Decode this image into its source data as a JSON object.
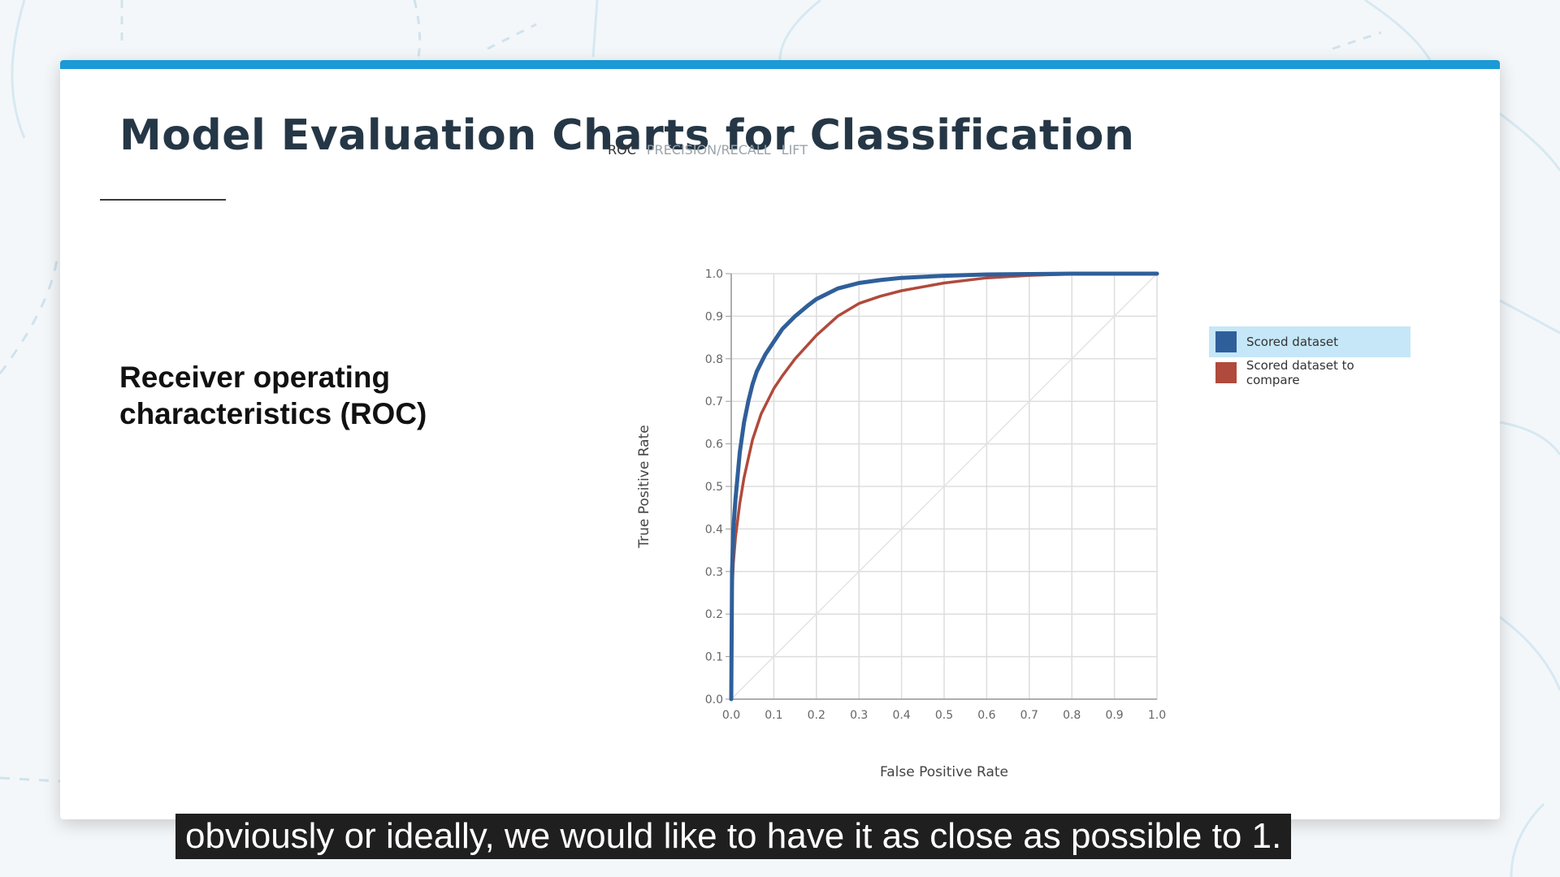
{
  "slide": {
    "title": "Model Evaluation Charts for Classification",
    "subtitle": "Receiver operating characteristics (ROC)"
  },
  "chart_tabs": [
    {
      "label": "ROC",
      "active": true
    },
    {
      "label": "PRECISION/RECALL",
      "active": false
    },
    {
      "label": "LIFT",
      "active": false
    }
  ],
  "chart_data": {
    "type": "line",
    "xlabel": "False Positive Rate",
    "ylabel": "True Positive Rate",
    "xlim": [
      0,
      1
    ],
    "ylim": [
      0,
      1
    ],
    "x_ticks": [
      "0.0",
      "0.1",
      "0.2",
      "0.3",
      "0.4",
      "0.5",
      "0.6",
      "0.7",
      "0.8",
      "0.9",
      "1.0"
    ],
    "y_ticks": [
      "0.0",
      "0.1",
      "0.2",
      "0.3",
      "0.4",
      "0.5",
      "0.6",
      "0.7",
      "0.8",
      "0.9",
      "1.0"
    ],
    "grid": true,
    "legend_position": "right",
    "diagonal_reference": true,
    "series": [
      {
        "name": "Scored dataset",
        "color": "#2f5f9a",
        "x": [
          0,
          0.002,
          0.005,
          0.01,
          0.02,
          0.03,
          0.04,
          0.05,
          0.06,
          0.08,
          0.1,
          0.12,
          0.15,
          0.18,
          0.2,
          0.25,
          0.3,
          0.35,
          0.4,
          0.5,
          0.6,
          0.7,
          0.8,
          0.9,
          1.0
        ],
        "y": [
          0,
          0.3,
          0.4,
          0.47,
          0.58,
          0.65,
          0.7,
          0.74,
          0.77,
          0.81,
          0.84,
          0.87,
          0.9,
          0.925,
          0.94,
          0.965,
          0.978,
          0.985,
          0.99,
          0.995,
          0.998,
          0.999,
          1.0,
          1.0,
          1.0
        ]
      },
      {
        "name": "Scored dataset to compare",
        "color": "#b04a3c",
        "x": [
          0,
          0.002,
          0.005,
          0.01,
          0.02,
          0.03,
          0.05,
          0.07,
          0.1,
          0.12,
          0.15,
          0.2,
          0.25,
          0.3,
          0.35,
          0.4,
          0.5,
          0.6,
          0.7,
          0.8,
          0.9,
          1.0
        ],
        "y": [
          0,
          0.25,
          0.32,
          0.38,
          0.46,
          0.52,
          0.61,
          0.67,
          0.73,
          0.76,
          0.8,
          0.855,
          0.9,
          0.93,
          0.947,
          0.96,
          0.978,
          0.99,
          0.996,
          0.999,
          1.0,
          1.0
        ]
      }
    ]
  },
  "caption": "obviously or ideally, we would like to have it as close as possible to 1."
}
